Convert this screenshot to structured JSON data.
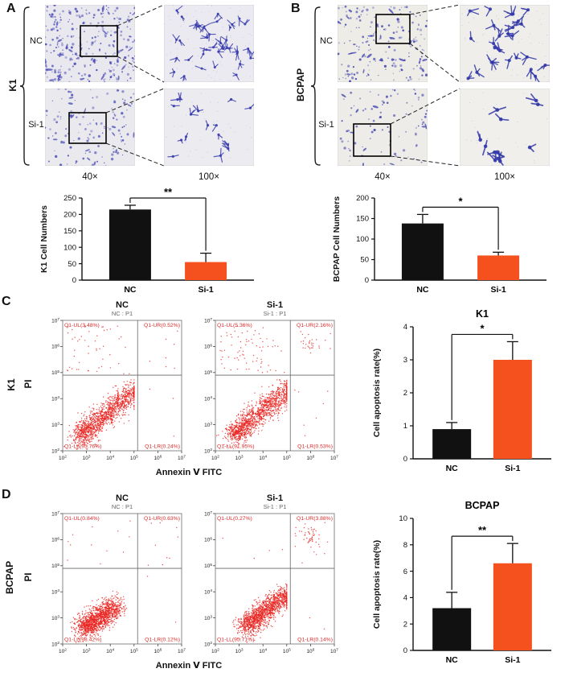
{
  "panelA": {
    "letter": "A",
    "cell_line": "K1",
    "row_labels": [
      "NC",
      "Si-1"
    ],
    "mag_labels": [
      "40×",
      "100×"
    ]
  },
  "panelB": {
    "letter": "B",
    "cell_line": "BCPAP",
    "row_labels": [
      "NC",
      "Si-1"
    ],
    "mag_labels": [
      "40×",
      "100×"
    ]
  },
  "panelC": {
    "letter": "C",
    "cell_line": "K1",
    "pi_label": "PI",
    "x_axis": "Annexin Ⅴ FITC"
  },
  "panelD": {
    "letter": "D",
    "cell_line": "BCPAP",
    "pi_label": "PI",
    "x_axis": "Annexin Ⅴ FITC"
  },
  "colors": {
    "nc_bar": "#111111",
    "si1_bar": "#f4511e",
    "flow_dot": "#e8231f",
    "quadrant_text": "#d92b2b"
  },
  "chart_data": [
    {
      "id": "k1_cell_numbers",
      "type": "bar",
      "title": "",
      "ylabel": "K1 Cell Numbers",
      "categories": [
        "NC",
        "Si-1"
      ],
      "values": [
        215,
        55
      ],
      "errors": [
        13,
        27
      ],
      "ylim": [
        0,
        250
      ],
      "ytick_step": 50,
      "significance": "**",
      "bar_colors": [
        "#111111",
        "#f4511e"
      ]
    },
    {
      "id": "bcpap_cell_numbers",
      "type": "bar",
      "title": "",
      "ylabel": "BCPAP Cell Numbers",
      "categories": [
        "NC",
        "Si-1"
      ],
      "values": [
        138,
        60
      ],
      "errors": [
        22,
        8
      ],
      "ylim": [
        0,
        200
      ],
      "ytick_step": 50,
      "significance": "*",
      "bar_colors": [
        "#111111",
        "#f4511e"
      ]
    },
    {
      "id": "k1_apoptosis",
      "type": "bar",
      "title": "K1",
      "ylabel": "Cell apoptosis rate(%)",
      "categories": [
        "NC",
        "Si-1"
      ],
      "values": [
        0.9,
        3.0
      ],
      "errors": [
        0.2,
        0.55
      ],
      "ylim": [
        0,
        4
      ],
      "ytick_step": 1,
      "significance": "*",
      "bar_colors": [
        "#111111",
        "#f4511e"
      ]
    },
    {
      "id": "bcpap_apoptosis",
      "type": "bar",
      "title": "BCPAP",
      "ylabel": "Cell apoptosis rate(%)",
      "categories": [
        "NC",
        "Si-1"
      ],
      "values": [
        3.2,
        6.6
      ],
      "errors": [
        1.2,
        1.5
      ],
      "ylim": [
        0,
        10
      ],
      "ytick_step": 2,
      "significance": "**",
      "bar_colors": [
        "#111111",
        "#f4511e"
      ]
    },
    {
      "id": "flow_k1_nc",
      "type": "scatter",
      "panel": "C",
      "title": "NC",
      "subtitle": "NC : P1",
      "xlabel": "Annexin Ⅴ FITC",
      "ylabel": "PI",
      "log_ticks": [
        2,
        3,
        4,
        5,
        6,
        7
      ],
      "quadrants": {
        "UL": 3.48,
        "UR": 0.52,
        "LL": 95.76,
        "LR": 0.24
      },
      "quadrant_labels": {
        "UL": "Q1-UL(3.48%)",
        "UR": "Q1-UR(0.52%)",
        "LL": "Q1-LL(95.76%)",
        "LR": "Q1-LR(0.24%)"
      },
      "cluster": [
        [
          2.7,
          2.5
        ],
        [
          5.1,
          4.4
        ]
      ]
    },
    {
      "id": "flow_k1_si1",
      "type": "scatter",
      "panel": "C",
      "title": "Si-1",
      "subtitle": "Si-1 : P1",
      "xlabel": "Annexin Ⅴ FITC",
      "ylabel": "PI",
      "log_ticks": [
        2,
        3,
        4,
        5,
        6,
        7
      ],
      "quadrants": {
        "UL": 5.36,
        "UR": 2.16,
        "LL": 91.95,
        "LR": 0.53
      },
      "quadrant_labels": {
        "UL": "Q1-UL(5.36%)",
        "UR": "Q1-UR(2.16%)",
        "LL": "Q1-LL(91.95%)",
        "LR": "Q1-LR(0.53%)"
      },
      "cluster": [
        [
          2.8,
          2.6
        ],
        [
          5.1,
          4.4
        ]
      ]
    },
    {
      "id": "flow_bcpap_nc",
      "type": "scatter",
      "panel": "D",
      "title": "NC",
      "subtitle": "NC : P1",
      "xlabel": "Annexin Ⅴ FITC",
      "ylabel": "PI",
      "log_ticks": [
        2,
        3,
        4,
        5,
        6,
        7
      ],
      "quadrants": {
        "UL": 0.84,
        "UR": 0.63,
        "LL": 98.42,
        "LR": 0.12
      },
      "quadrant_labels": {
        "UL": "Q1-UL(0.84%)",
        "UR": "Q1-UR(0.63%)",
        "LL": "Q1-LL(98.42%)",
        "LR": "Q1-LR(0.12%)"
      },
      "cluster": [
        [
          2.9,
          2.6
        ],
        [
          4.3,
          3.5
        ]
      ]
    },
    {
      "id": "flow_bcpap_si1",
      "type": "scatter",
      "panel": "D",
      "title": "Si-1",
      "subtitle": "Si-1 : P1",
      "xlabel": "Annexin Ⅴ FITC",
      "ylabel": "PI",
      "log_ticks": [
        2,
        3,
        4,
        5,
        6,
        7
      ],
      "quadrants": {
        "UL": 0.27,
        "UR": 3.88,
        "LL": 95.71,
        "LR": 0.14
      },
      "quadrant_labels": {
        "UL": "Q1-UL(0.27%)",
        "UR": "Q1-UR(3.88%)",
        "LL": "Q1-LL(95.71%)",
        "LR": "Q1-LR(0.14%)"
      },
      "cluster": [
        [
          3.3,
          2.7
        ],
        [
          5.0,
          3.9
        ]
      ]
    }
  ]
}
